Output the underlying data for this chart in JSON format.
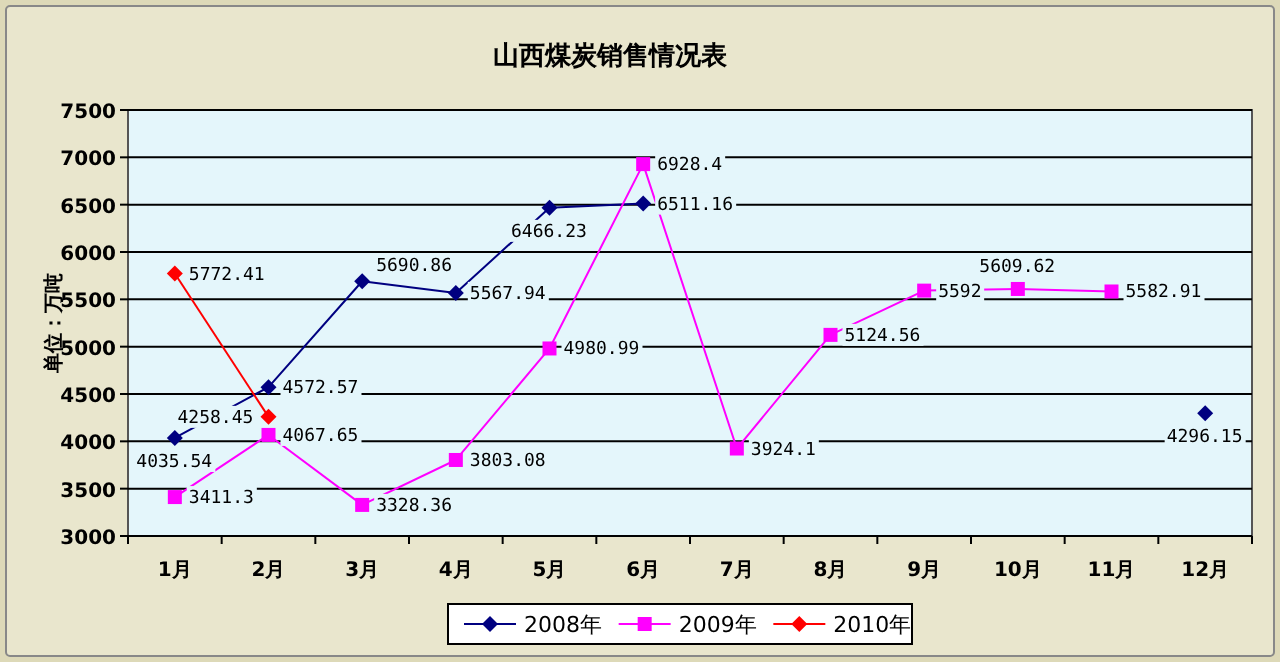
{
  "chart_data": {
    "type": "line",
    "title": "山西煤炭销售情况表",
    "ylabel": "单位：万吨",
    "categories": [
      "1月",
      "2月",
      "3月",
      "4月",
      "5月",
      "6月",
      "7月",
      "8月",
      "9月",
      "10月",
      "11月",
      "12月"
    ],
    "series": [
      {
        "name": "2008年",
        "color": "#000080",
        "marker": "diamond",
        "values": [
          4035.54,
          4572.57,
          5690.86,
          5567.94,
          6466.23,
          6511.16,
          null,
          null,
          null,
          null,
          null,
          4296.15
        ]
      },
      {
        "name": "2009年",
        "color": "#ff00ff",
        "marker": "square",
        "values": [
          3411.3,
          4067.65,
          3328.36,
          3803.08,
          4980.99,
          6928.4,
          3924.1,
          5124.56,
          5592,
          5609.62,
          5582.91,
          null
        ]
      },
      {
        "name": "2010年",
        "color": "#ff0000",
        "marker": "diamond",
        "values": [
          5772.41,
          4258.45,
          null,
          null,
          null,
          null,
          null,
          null,
          null,
          null,
          null,
          null
        ]
      }
    ],
    "ylim": [
      3000,
      7500
    ],
    "yticks": [
      3000,
      3500,
      4000,
      4500,
      5000,
      5500,
      6000,
      6500,
      7000,
      7500
    ],
    "grid": "y",
    "legend": "bottom",
    "data_labels": true,
    "line_style": "solid"
  }
}
